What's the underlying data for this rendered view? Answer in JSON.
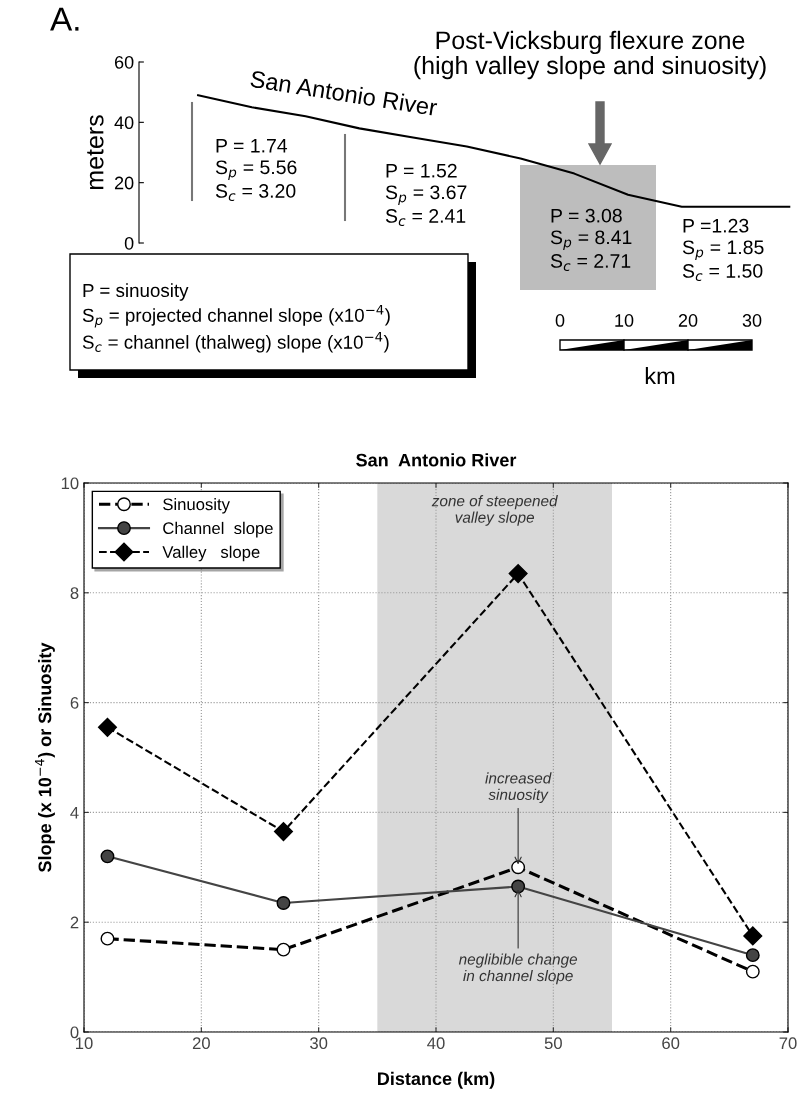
{
  "chart_data": [
    {
      "type": "line",
      "title": "Post-Vicksburg flexure zone\n(high valley slope and sinuosity)",
      "ylabel": "meters",
      "categories": [
        null,
        null,
        null,
        null,
        null,
        null,
        null,
        null,
        null,
        null,
        null,
        null
      ],
      "series": [
        {
          "name": "San Antonio River",
          "color": "#000000",
          "values": [
            49,
            45,
            42,
            38,
            35,
            32,
            28,
            23,
            16,
            12,
            12,
            12
          ]
        }
      ],
      "ylim": [
        0,
        60
      ],
      "yticks": [
        0,
        20,
        40,
        60
      ],
      "tick_labels": "y",
      "grid": false,
      "marker": "none",
      "line_style": "solid",
      "annotations": [
        "A.",
        "P = 1.74\nS$_{p}$ = 5.56\nS$_{c}$ = 3.20",
        "P = 1.52\nS$_{p}$ = 3.67\nS$_{c}$ = 2.41",
        "P = 3.08\nS$_{p}$ = 8.41\nS$_{c}$ = 2.71",
        "P =1.23\nS$_{p}$ = 1.85\nS$_{c}$ = 1.50",
        "P = sinuosity\nS$_{p}$ = projected channel slope (x10$^{−4}$)\nS$_{c}$ = channel (thalweg) slope (x10$^{−4}$)",
        "0",
        "10",
        "20",
        "30",
        "km"
      ]
    },
    {
      "type": "line",
      "title": "San  Antonio River",
      "xlabel": "Distance (km)",
      "ylabel": "Slope (x 10$^{−4}$) or Sinuosity",
      "series": [
        {
          "name": "Sinuosity",
          "color": "#000000",
          "x": [
            12,
            27,
            47,
            67
          ],
          "values": [
            1.7,
            1.5,
            3.0,
            1.1
          ],
          "marker": "circle",
          "line_style": "dashed"
        },
        {
          "name": "Channel  slope",
          "color": "#444444",
          "x": [
            12,
            27,
            47,
            67
          ],
          "values": [
            3.2,
            2.35,
            2.65,
            1.4
          ],
          "marker": "circle",
          "line_style": "solid"
        },
        {
          "name": "Valley   slope",
          "color": "#000000",
          "x": [
            12,
            27,
            47,
            67
          ],
          "values": [
            5.55,
            3.65,
            8.35,
            1.75
          ],
          "marker": "diamond",
          "line_style": "dashed"
        }
      ],
      "xlim": [
        10,
        70
      ],
      "xticks": [
        10,
        20,
        30,
        40,
        50,
        60,
        70
      ],
      "ylim": [
        0,
        10
      ],
      "yticks": [
        0,
        2,
        4,
        6,
        8,
        10
      ],
      "grid": true,
      "legend": "top left",
      "bands": [
        {
          "axis": "x",
          "from": 35,
          "to": 55,
          "label": "zone of steepened\nvalley slope",
          "color": "#d9d9d9"
        }
      ],
      "annotations": [
        {
          "text": "increased\nsinuosity",
          "x": 47,
          "y": 3.0
        },
        {
          "text": "neglibible change\nin channel slope",
          "x": 47,
          "y": 2.65
        }
      ]
    }
  ]
}
